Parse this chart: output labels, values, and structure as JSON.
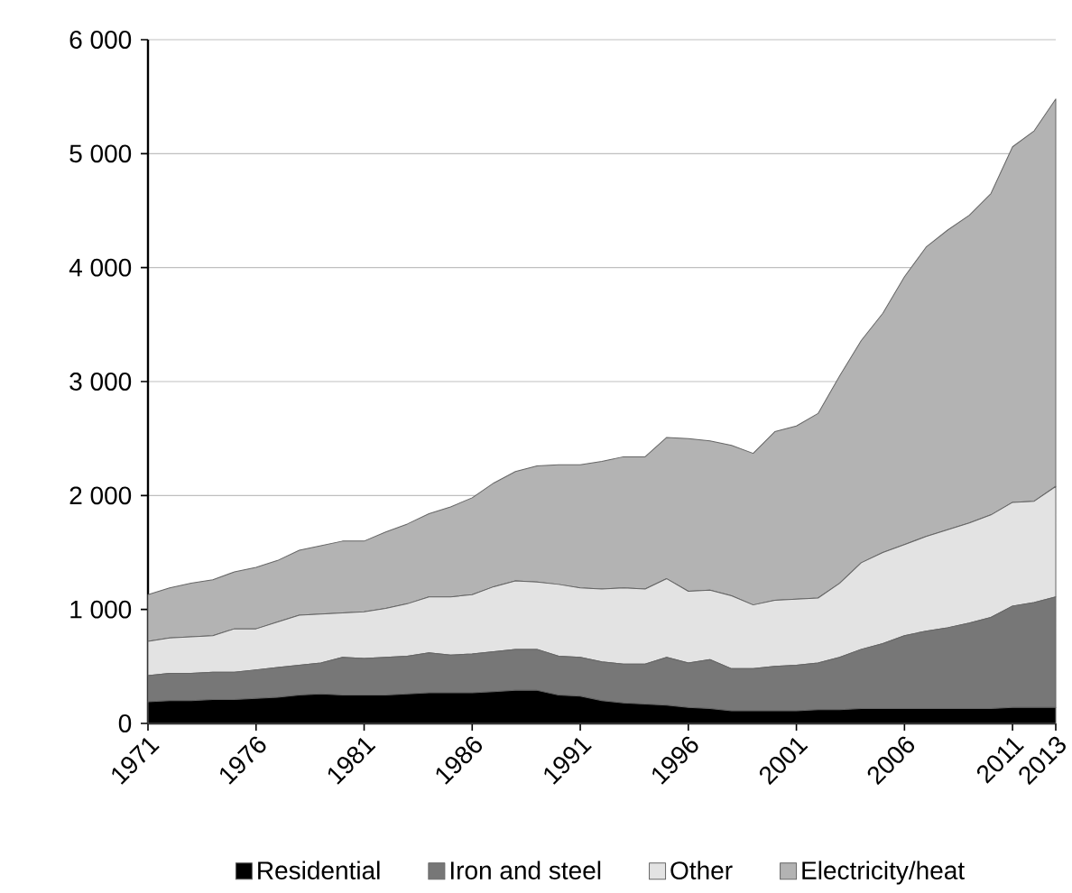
{
  "chart_data": {
    "type": "area",
    "stacked": true,
    "x": [
      1971,
      1972,
      1973,
      1974,
      1975,
      1976,
      1977,
      1978,
      1979,
      1980,
      1981,
      1982,
      1983,
      1984,
      1985,
      1986,
      1987,
      1988,
      1989,
      1990,
      1991,
      1992,
      1993,
      1994,
      1995,
      1996,
      1997,
      1998,
      1999,
      2000,
      2001,
      2002,
      2003,
      2004,
      2005,
      2006,
      2007,
      2008,
      2009,
      2010,
      2011,
      2012,
      2013
    ],
    "series": [
      {
        "name": "Residential",
        "color": "#000000",
        "values": [
          190,
          200,
          200,
          210,
          210,
          220,
          230,
          250,
          260,
          250,
          250,
          250,
          260,
          270,
          270,
          270,
          280,
          290,
          290,
          250,
          240,
          200,
          180,
          170,
          160,
          140,
          130,
          110,
          110,
          110,
          110,
          120,
          120,
          130,
          130,
          130,
          130,
          130,
          130,
          130,
          140,
          140,
          140
        ]
      },
      {
        "name": "Iron and steel",
        "color": "#777777",
        "values": [
          230,
          240,
          240,
          240,
          240,
          250,
          260,
          260,
          270,
          330,
          320,
          330,
          330,
          350,
          330,
          340,
          350,
          360,
          360,
          340,
          340,
          340,
          340,
          350,
          420,
          390,
          430,
          370,
          370,
          390,
          400,
          410,
          460,
          520,
          570,
          640,
          680,
          710,
          750,
          800,
          890,
          920,
          970
        ]
      },
      {
        "name": "Other",
        "color": "#e3e3e3",
        "values": [
          300,
          310,
          320,
          320,
          380,
          360,
          400,
          440,
          430,
          390,
          410,
          430,
          460,
          490,
          510,
          520,
          570,
          600,
          590,
          630,
          610,
          640,
          670,
          660,
          690,
          630,
          610,
          640,
          560,
          580,
          580,
          570,
          650,
          760,
          800,
          800,
          830,
          860,
          880,
          900,
          910,
          890,
          970
        ]
      },
      {
        "name": "Electricity/heat",
        "color": "#b3b3b3",
        "values": [
          410,
          440,
          470,
          490,
          500,
          540,
          540,
          570,
          600,
          630,
          620,
          670,
          700,
          730,
          790,
          850,
          910,
          960,
          1020,
          1050,
          1080,
          1120,
          1150,
          1160,
          1240,
          1340,
          1310,
          1320,
          1330,
          1480,
          1520,
          1620,
          1820,
          1950,
          2100,
          2350,
          2540,
          2630,
          2700,
          2820,
          3120,
          3250,
          3400
        ]
      }
    ],
    "xlim": [
      1971,
      2013
    ],
    "xticks": [
      1971,
      1976,
      1981,
      1986,
      1991,
      1996,
      2001,
      2006,
      2011,
      2013
    ],
    "ylim": [
      0,
      6000
    ],
    "yticks": [
      0,
      {
        "value": 1000,
        "label": "1 000"
      },
      {
        "value": 2000,
        "label": "2 000"
      },
      {
        "value": 3000,
        "label": "3 000"
      },
      {
        "value": 4000,
        "label": "4 000"
      },
      {
        "value": 5000,
        "label": "5 000"
      },
      {
        "value": 6000,
        "label": "6 000"
      }
    ],
    "grid": "y",
    "legend": "bottom"
  }
}
